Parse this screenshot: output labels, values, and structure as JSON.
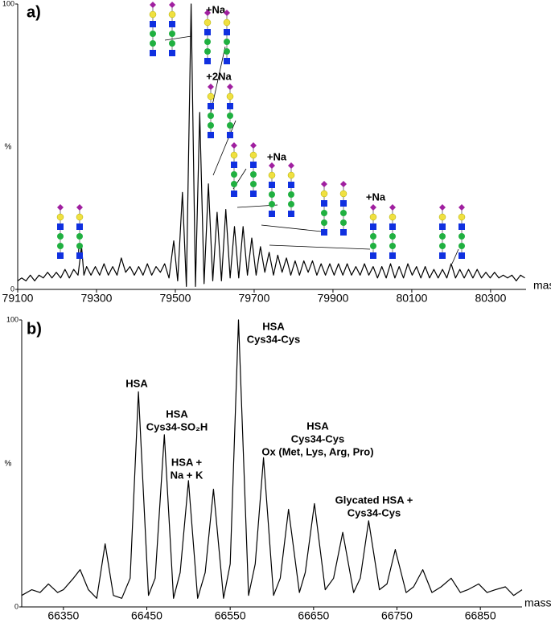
{
  "chart_data": [
    {
      "type": "line",
      "panel": "a)",
      "ylabel": "%",
      "xlabel": "mass",
      "color": "#000000",
      "xlim": [
        79100,
        80390
      ],
      "ylim": [
        0,
        100
      ],
      "xticks": [
        79100,
        79300,
        79500,
        79700,
        79900,
        80100,
        80300
      ],
      "yticks": [
        0,
        100
      ],
      "annotations": [
        [
          "+Na"
        ],
        [
          "+2Na"
        ],
        [
          "+Na"
        ],
        [
          "+Na"
        ]
      ],
      "x": [
        79100,
        79110,
        79121,
        79132,
        79143,
        79154,
        79165,
        79176,
        79187,
        79198,
        79209,
        79220,
        79231,
        79242,
        79253,
        79262,
        79268,
        79275,
        79286,
        79297,
        79308,
        79319,
        79330,
        79341,
        79352,
        79363,
        79374,
        79385,
        79396,
        79407,
        79418,
        79429,
        79440,
        79451,
        79462,
        79473,
        79484,
        79496,
        79506,
        79518,
        79528,
        79540,
        79551,
        79562,
        79573,
        79584,
        79595,
        79606,
        79617,
        79628,
        79639,
        79650,
        79661,
        79672,
        79683,
        79694,
        79705,
        79716,
        79727,
        79738,
        79749,
        79760,
        79771,
        79782,
        79793,
        79804,
        79815,
        79826,
        79837,
        79848,
        79859,
        79870,
        79881,
        79892,
        79903,
        79914,
        79925,
        79936,
        79947,
        79958,
        79969,
        79980,
        79991,
        80002,
        80013,
        80024,
        80035,
        80046,
        80057,
        80068,
        80079,
        80090,
        80101,
        80112,
        80123,
        80134,
        80145,
        80156,
        80167,
        80178,
        80189,
        80200,
        80211,
        80222,
        80233,
        80244,
        80255,
        80266,
        80277,
        80288,
        80299,
        80310,
        80321,
        80332,
        80343,
        80354,
        80365,
        80376,
        80387
      ],
      "values": [
        3,
        4,
        3,
        5,
        3,
        5,
        4,
        6,
        4,
        6,
        4,
        7,
        4,
        7,
        5,
        15,
        5,
        8,
        5,
        8,
        5,
        9,
        5,
        8,
        5,
        11,
        6,
        8,
        5,
        8,
        5,
        9,
        5,
        8,
        6,
        9,
        4,
        17,
        3,
        34,
        1,
        100,
        1,
        62,
        2,
        37,
        3,
        27,
        3,
        28,
        4,
        22,
        4,
        22,
        5,
        18,
        5,
        15,
        6,
        13,
        5,
        12,
        6,
        11,
        5,
        10,
        5,
        10,
        6,
        10,
        5,
        9,
        5,
        9,
        5,
        9,
        5,
        9,
        5,
        8,
        5,
        9,
        5,
        8,
        4,
        8,
        4,
        9,
        4,
        8,
        4,
        9,
        5,
        8,
        4,
        8,
        4,
        7,
        4,
        7,
        4,
        9,
        4,
        7,
        4,
        7,
        4,
        7,
        4,
        6,
        4,
        6,
        4,
        5,
        4,
        5,
        3,
        5,
        4
      ]
    },
    {
      "type": "line",
      "panel": "b)",
      "ylabel": "%",
      "xlabel": "mass",
      "color": "#000000",
      "xlim": [
        66300,
        66900
      ],
      "ylim": [
        0,
        100
      ],
      "xticks": [
        66350,
        66450,
        66550,
        66650,
        66750,
        66850
      ],
      "yticks": [
        0,
        100
      ],
      "annotations": [
        [
          "HSA"
        ],
        [
          "HSA",
          "Cys34-SO₂H"
        ],
        [
          "HSA +",
          "Na + K"
        ],
        [
          "HSA",
          "Cys34-Cys"
        ],
        [
          "HSA",
          "Cys34-Cys",
          "Ox (Met, Lys, Arg, Pro)"
        ],
        [
          "Glycated HSA +",
          "Cys34-Cys"
        ]
      ],
      "x": [
        66300,
        66312,
        66322,
        66332,
        66343,
        66350,
        66362,
        66370,
        66380,
        66390,
        66400,
        66410,
        66420,
        66430,
        66440,
        66452,
        66460,
        66471,
        66482,
        66490,
        66500,
        66511,
        66520,
        66530,
        66542,
        66550,
        66560,
        66572,
        66580,
        66590,
        66602,
        66610,
        66620,
        66633,
        66640,
        66651,
        66664,
        66674,
        66685,
        66698,
        66706,
        66716,
        66729,
        66738,
        66748,
        66761,
        66770,
        66781,
        66792,
        66803,
        66815,
        66826,
        66835,
        66848,
        66858,
        66868,
        66880,
        66890,
        66900
      ],
      "values": [
        4,
        6,
        5,
        8,
        5,
        6,
        10,
        13,
        6,
        3,
        22,
        4,
        3,
        10,
        75,
        4,
        10,
        60,
        3,
        12,
        44,
        3,
        12,
        41,
        3,
        15,
        100,
        4,
        15,
        52,
        4,
        10,
        34,
        5,
        12,
        36,
        6,
        10,
        26,
        5,
        10,
        30,
        6,
        8,
        20,
        5,
        7,
        13,
        5,
        7,
        10,
        5,
        6,
        8,
        5,
        6,
        7,
        4,
        6
      ]
    }
  ]
}
